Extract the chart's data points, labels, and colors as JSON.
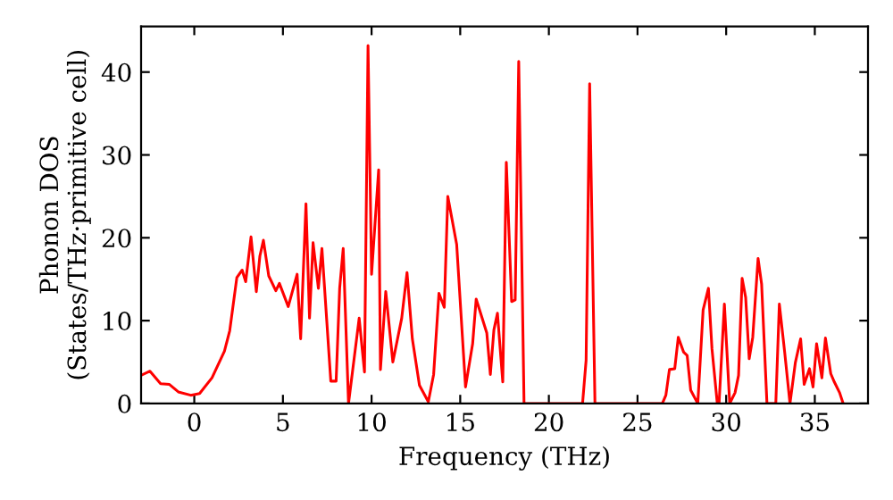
{
  "chart_data": {
    "type": "line",
    "xlabel": "Frequency (THz)",
    "ylabel": "Phonon DOS\n(States/THz·primitive cell)",
    "x": [
      -3.0,
      -2.5,
      -1.9,
      -1.4,
      -0.9,
      -0.2,
      0.3,
      1.0,
      1.7,
      2.0,
      2.4,
      2.7,
      2.9,
      3.2,
      3.5,
      3.7,
      3.9,
      4.2,
      4.6,
      4.8,
      5.3,
      5.8,
      6.0,
      6.3,
      6.5,
      6.7,
      7.0,
      7.2,
      7.7,
      8.0,
      8.2,
      8.4,
      8.7,
      9.3,
      9.6,
      9.8,
      10.0,
      10.4,
      10.5,
      10.8,
      11.2,
      11.7,
      12.0,
      12.3,
      12.7,
      13.2,
      13.5,
      13.8,
      14.1,
      14.3,
      14.8,
      15.3,
      15.7,
      15.9,
      16.5,
      16.7,
      16.9,
      17.1,
      17.4,
      17.6,
      17.9,
      18.1,
      18.3,
      18.6,
      21.9,
      22.1,
      22.3,
      22.6,
      26.4,
      26.6,
      26.8,
      27.1,
      27.3,
      27.6,
      27.8,
      28.0,
      28.4,
      28.7,
      29.0,
      29.2,
      29.5,
      29.6,
      29.9,
      30.2,
      30.5,
      30.7,
      30.9,
      31.1,
      31.3,
      31.5,
      31.8,
      32.0,
      32.3,
      32.8,
      33.0,
      33.3,
      33.6,
      33.9,
      34.2,
      34.4,
      34.7,
      34.9,
      35.1,
      35.4,
      35.6,
      35.9,
      36.1,
      36.4,
      36.6
    ],
    "series": [
      {
        "color": "#ff0000",
        "values": [
          3.4,
          3.9,
          2.4,
          2.3,
          1.4,
          1.0,
          1.2,
          3.1,
          6.3,
          8.8,
          15.2,
          16.1,
          14.7,
          20.1,
          13.5,
          17.8,
          19.7,
          15.4,
          13.6,
          14.5,
          11.7,
          15.6,
          7.8,
          24.1,
          10.3,
          19.4,
          13.9,
          18.7,
          2.7,
          2.7,
          13.9,
          18.7,
          0,
          10.3,
          3.8,
          43.2,
          15.6,
          28.2,
          4.1,
          13.5,
          5.0,
          10.3,
          15.8,
          7.8,
          2.2,
          0.2,
          3.5,
          13.3,
          11.6,
          25.0,
          19.2,
          2.0,
          7.2,
          12.6,
          8.5,
          3.5,
          8.9,
          10.9,
          2.6,
          29.1,
          12.3,
          12.5,
          41.3,
          0,
          0,
          5.2,
          38.6,
          0,
          0,
          1.0,
          4.1,
          4.2,
          8.0,
          6.2,
          5.8,
          1.6,
          0,
          11.3,
          13.9,
          6.6,
          0,
          0,
          12.0,
          0,
          1.3,
          3.4,
          15.1,
          12.8,
          5.4,
          8.0,
          17.5,
          14.4,
          0,
          0,
          12.0,
          6.2,
          0,
          4.9,
          7.8,
          2.3,
          4.2,
          2.0,
          7.2,
          3.1,
          7.9,
          3.6,
          2.6,
          1.3,
          0
        ]
      }
    ],
    "xlim": [
      -3,
      38
    ],
    "ylim": [
      0,
      45.5
    ],
    "xticks": [
      0,
      5,
      10,
      15,
      20,
      25,
      30,
      35
    ],
    "yticks": [
      0,
      10,
      20,
      30,
      40
    ],
    "grid": false,
    "marker": "none",
    "line_style": "solid"
  }
}
